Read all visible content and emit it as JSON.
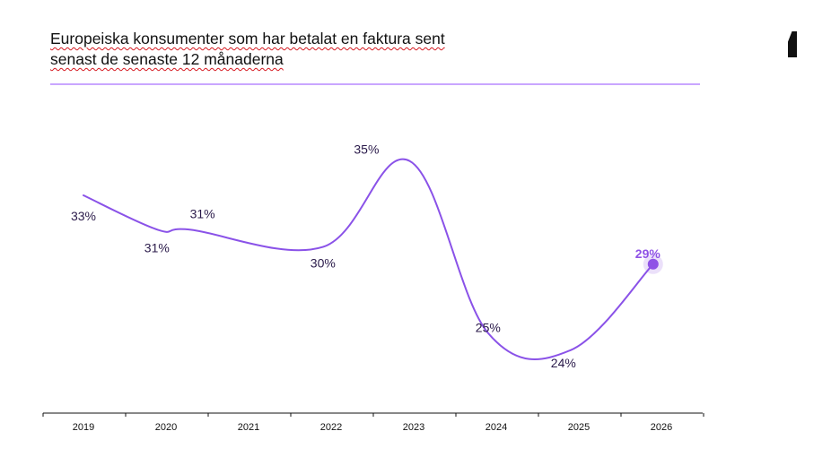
{
  "title": {
    "line1": "Europeiska konsumenter som har betalat en faktura sent",
    "line2": "senast de senaste 12 månaderna"
  },
  "colors": {
    "line": "#8a52e8",
    "rule": "#c9a6ff",
    "axis": "#111111",
    "label": "#2a1a4a",
    "highlight": "#8f52e6",
    "logo": "#111111"
  },
  "logo": {
    "icon": "brand-logo-icon"
  },
  "chart_data": {
    "type": "line",
    "title": "Europeiska konsumenter som har betalat en faktura sent senast de senaste 12 månaderna",
    "xlabel": "",
    "ylabel": "",
    "categories": [
      "2019",
      "2020",
      "2021",
      "2022",
      "2023",
      "2024",
      "2025",
      "2026"
    ],
    "grid": false,
    "legend": "none",
    "ylim": [
      20,
      40
    ],
    "points": [
      {
        "x": 2019.0,
        "y": 33,
        "label": "33%"
      },
      {
        "x": 2019.9,
        "y": 31,
        "label": "31%"
      },
      {
        "x": 2020.3,
        "y": 31,
        "label": "31%"
      },
      {
        "x": 2021.9,
        "y": 30,
        "label": "30%"
      },
      {
        "x": 2022.95,
        "y": 35,
        "label": "35%"
      },
      {
        "x": 2023.9,
        "y": 25,
        "label": "25%"
      },
      {
        "x": 2024.9,
        "y": 24,
        "label": "24%"
      },
      {
        "x": 2025.9,
        "y": 29,
        "label": "29%",
        "highlight": true
      }
    ]
  }
}
